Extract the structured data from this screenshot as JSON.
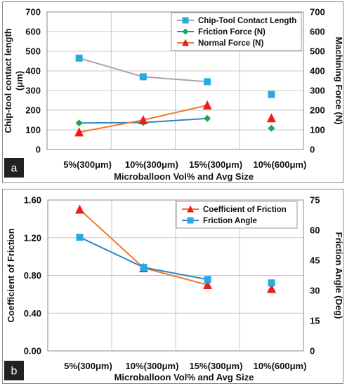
{
  "chart_data": [
    {
      "panel_label": "a",
      "type": "line",
      "categories": [
        "5%(300μm)",
        "10%(300μm)",
        "15%(300μm)",
        "10%(600μm)"
      ],
      "xlabel": "Microballoon Vol% and Avg Size",
      "ylabel": "Chip-tool contact length (μm)",
      "ylabel_lines": [
        "Chip-tool contact length",
        "(μm)"
      ],
      "y2label": "Machining Force (N)",
      "ylim": [
        0,
        700
      ],
      "y2lim": [
        0,
        700
      ],
      "yticks": [
        0,
        100,
        200,
        300,
        400,
        500,
        600,
        700
      ],
      "y2ticks": [
        0,
        100,
        200,
        300,
        400,
        500,
        600,
        700
      ],
      "grid": true,
      "legend_position": "top-right",
      "series": [
        {
          "name": "Chip-Tool Contact Length",
          "axis": "left",
          "marker": "square",
          "color": "#2aa9e0",
          "line_color": "#a6a6a6",
          "values": [
            465,
            370,
            345,
            280
          ],
          "connected": [
            true,
            true,
            true,
            false
          ]
        },
        {
          "name": "Friction Force (N)",
          "axis": "right",
          "marker": "diamond",
          "color": "#1aa84a",
          "line_color": "#2e86c1",
          "values": [
            135,
            137,
            158,
            108
          ],
          "connected": [
            true,
            true,
            true,
            false
          ]
        },
        {
          "name": "Normal Force (N)",
          "axis": "right",
          "marker": "triangle",
          "color": "#ee1c1c",
          "line_color": "#f0782a",
          "values": [
            88,
            150,
            225,
            160
          ],
          "connected": [
            true,
            true,
            true,
            false
          ]
        }
      ]
    },
    {
      "panel_label": "b",
      "type": "line",
      "categories": [
        "5%(300μm)",
        "10%(300μm)",
        "15%(300μm)",
        "10%(600μm)"
      ],
      "xlabel": "Microballoon Vol% and Avg Size",
      "ylabel": "Coefficient of Friction",
      "ylabel_lines": [
        "Coefficient of Friction"
      ],
      "y2label": "Friction Angle (Deg)",
      "ylim": [
        0,
        1.6
      ],
      "y2lim": [
        0,
        75
      ],
      "yticks": [
        "0.00",
        "0.40",
        "0.80",
        "1.20",
        "1.60"
      ],
      "y2ticks": [
        0,
        15,
        30,
        45,
        60,
        75
      ],
      "grid": true,
      "legend_position": "top-right",
      "series": [
        {
          "name": "Coefficient of Friction",
          "axis": "left",
          "marker": "triangle",
          "color": "#ee1c1c",
          "line_color": "#f0782a",
          "values": [
            1.5,
            0.88,
            0.7,
            0.66
          ],
          "connected": [
            true,
            true,
            true,
            false
          ]
        },
        {
          "name": "Friction Angle",
          "axis": "right",
          "marker": "square",
          "color": "#2aa9e0",
          "line_color": "#2e86c1",
          "values": [
            56.5,
            41.5,
            35.5,
            33.8
          ],
          "connected": [
            true,
            true,
            true,
            false
          ]
        }
      ]
    }
  ]
}
